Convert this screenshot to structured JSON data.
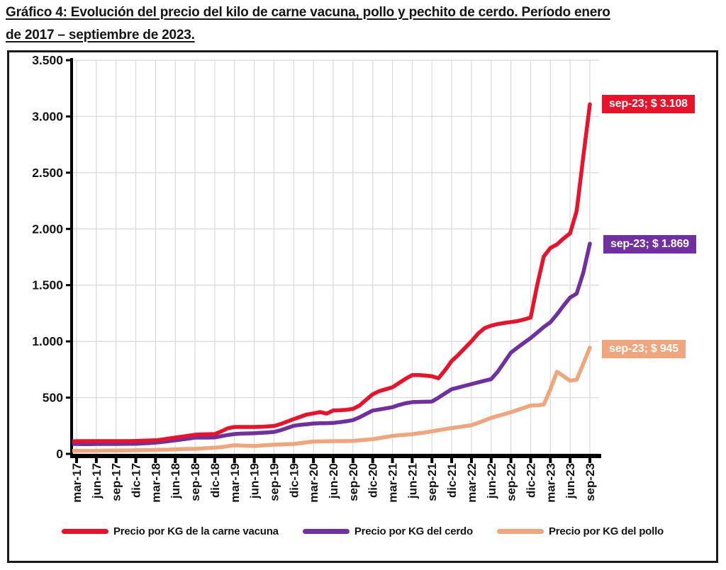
{
  "title": {
    "line1": "Gráfico 4: Evolución del precio del kilo de carne vacuna, pollo y pechito de cerdo. Período enero",
    "line2": "de 2017 – septiembre de 2023."
  },
  "chart_data": {
    "type": "line",
    "x_start_label": "ene-17",
    "frequency": "monthly",
    "x_tick_labels": [
      "mar-17",
      "jun-17",
      "sep-17",
      "dic-17",
      "mar-18",
      "jun-18",
      "sep-18",
      "dic-18",
      "mar-19",
      "jun-19",
      "sep-19",
      "dic-19",
      "mar-20",
      "jun-20",
      "sep-20",
      "dic-20",
      "mar-21",
      "jun-21",
      "sep-21",
      "dic-21",
      "mar-22",
      "jun-22",
      "sep-22",
      "dic-22",
      "mar-23",
      "jun-23",
      "sep-23"
    ],
    "y_ticks": [
      {
        "value": 0,
        "label": "0"
      },
      {
        "value": 500,
        "label": "500"
      },
      {
        "value": 1000,
        "label": "1.000"
      },
      {
        "value": 1500,
        "label": "1.500"
      },
      {
        "value": 2000,
        "label": "2.000"
      },
      {
        "value": 2500,
        "label": "2.500"
      },
      {
        "value": 3000,
        "label": "3.000"
      },
      {
        "value": 3500,
        "label": "3.500"
      }
    ],
    "ylim": [
      0,
      3500
    ],
    "grid": true,
    "legend_position": "bottom",
    "series": [
      {
        "name": "Precio por KG de la carne vacuna",
        "color": "#e8132b",
        "end_label": "sep-23; $ 3.108",
        "end_value": 3108,
        "values": [
          105,
          110,
          113,
          113,
          113,
          113,
          113,
          113,
          113,
          113,
          113,
          115,
          117,
          119,
          121,
          128,
          136,
          145,
          153,
          162,
          170,
          173,
          175,
          176,
          200,
          228,
          239,
          239,
          239,
          239,
          241,
          244,
          248,
          265,
          287,
          309,
          330,
          350,
          360,
          372,
          358,
          385,
          388,
          392,
          400,
          430,
          480,
          530,
          558,
          575,
          592,
          630,
          668,
          700,
          700,
          696,
          690,
          672,
          745,
          825,
          880,
          940,
          1000,
          1068,
          1118,
          1140,
          1154,
          1164,
          1172,
          1180,
          1195,
          1212,
          1500,
          1755,
          1830,
          1862,
          1915,
          1960,
          2160,
          2640,
          3108
        ]
      },
      {
        "name": "Precio por KG del cerdo",
        "color": "#7030a0",
        "end_label": "sep-23; $ 1.869",
        "end_value": 1869,
        "values": [
          88,
          88,
          88,
          87,
          87,
          88,
          88,
          88,
          88,
          89,
          90,
          90,
          93,
          96,
          100,
          106,
          113,
          120,
          128,
          136,
          145,
          145,
          145,
          146,
          158,
          168,
          176,
          180,
          182,
          183,
          187,
          191,
          195,
          210,
          230,
          250,
          258,
          264,
          270,
          272,
          273,
          275,
          282,
          290,
          300,
          325,
          355,
          385,
          395,
          405,
          415,
          435,
          450,
          460,
          462,
          463,
          465,
          500,
          538,
          575,
          590,
          605,
          620,
          635,
          650,
          665,
          730,
          815,
          900,
          945,
          988,
          1030,
          1078,
          1128,
          1170,
          1240,
          1318,
          1390,
          1425,
          1610,
          1869
        ]
      },
      {
        "name": "Precio por KG del pollo",
        "color": "#f0a57c",
        "end_label": "sep-23; $ 945",
        "end_value": 945,
        "values": [
          25,
          26,
          28,
          28,
          28,
          28,
          29,
          30,
          30,
          31,
          31,
          32,
          33,
          34,
          35,
          37,
          38,
          40,
          42,
          44,
          45,
          48,
          52,
          55,
          60,
          68,
          76,
          74,
          72,
          70,
          74,
          78,
          82,
          84,
          86,
          88,
          95,
          103,
          110,
          111,
          112,
          113,
          113,
          114,
          115,
          120,
          125,
          130,
          140,
          150,
          160,
          165,
          170,
          175,
          183,
          191,
          200,
          210,
          220,
          230,
          238,
          246,
          255,
          275,
          298,
          320,
          337,
          353,
          370,
          390,
          410,
          430,
          432,
          438,
          575,
          730,
          690,
          650,
          660,
          800,
          945
        ]
      }
    ]
  }
}
